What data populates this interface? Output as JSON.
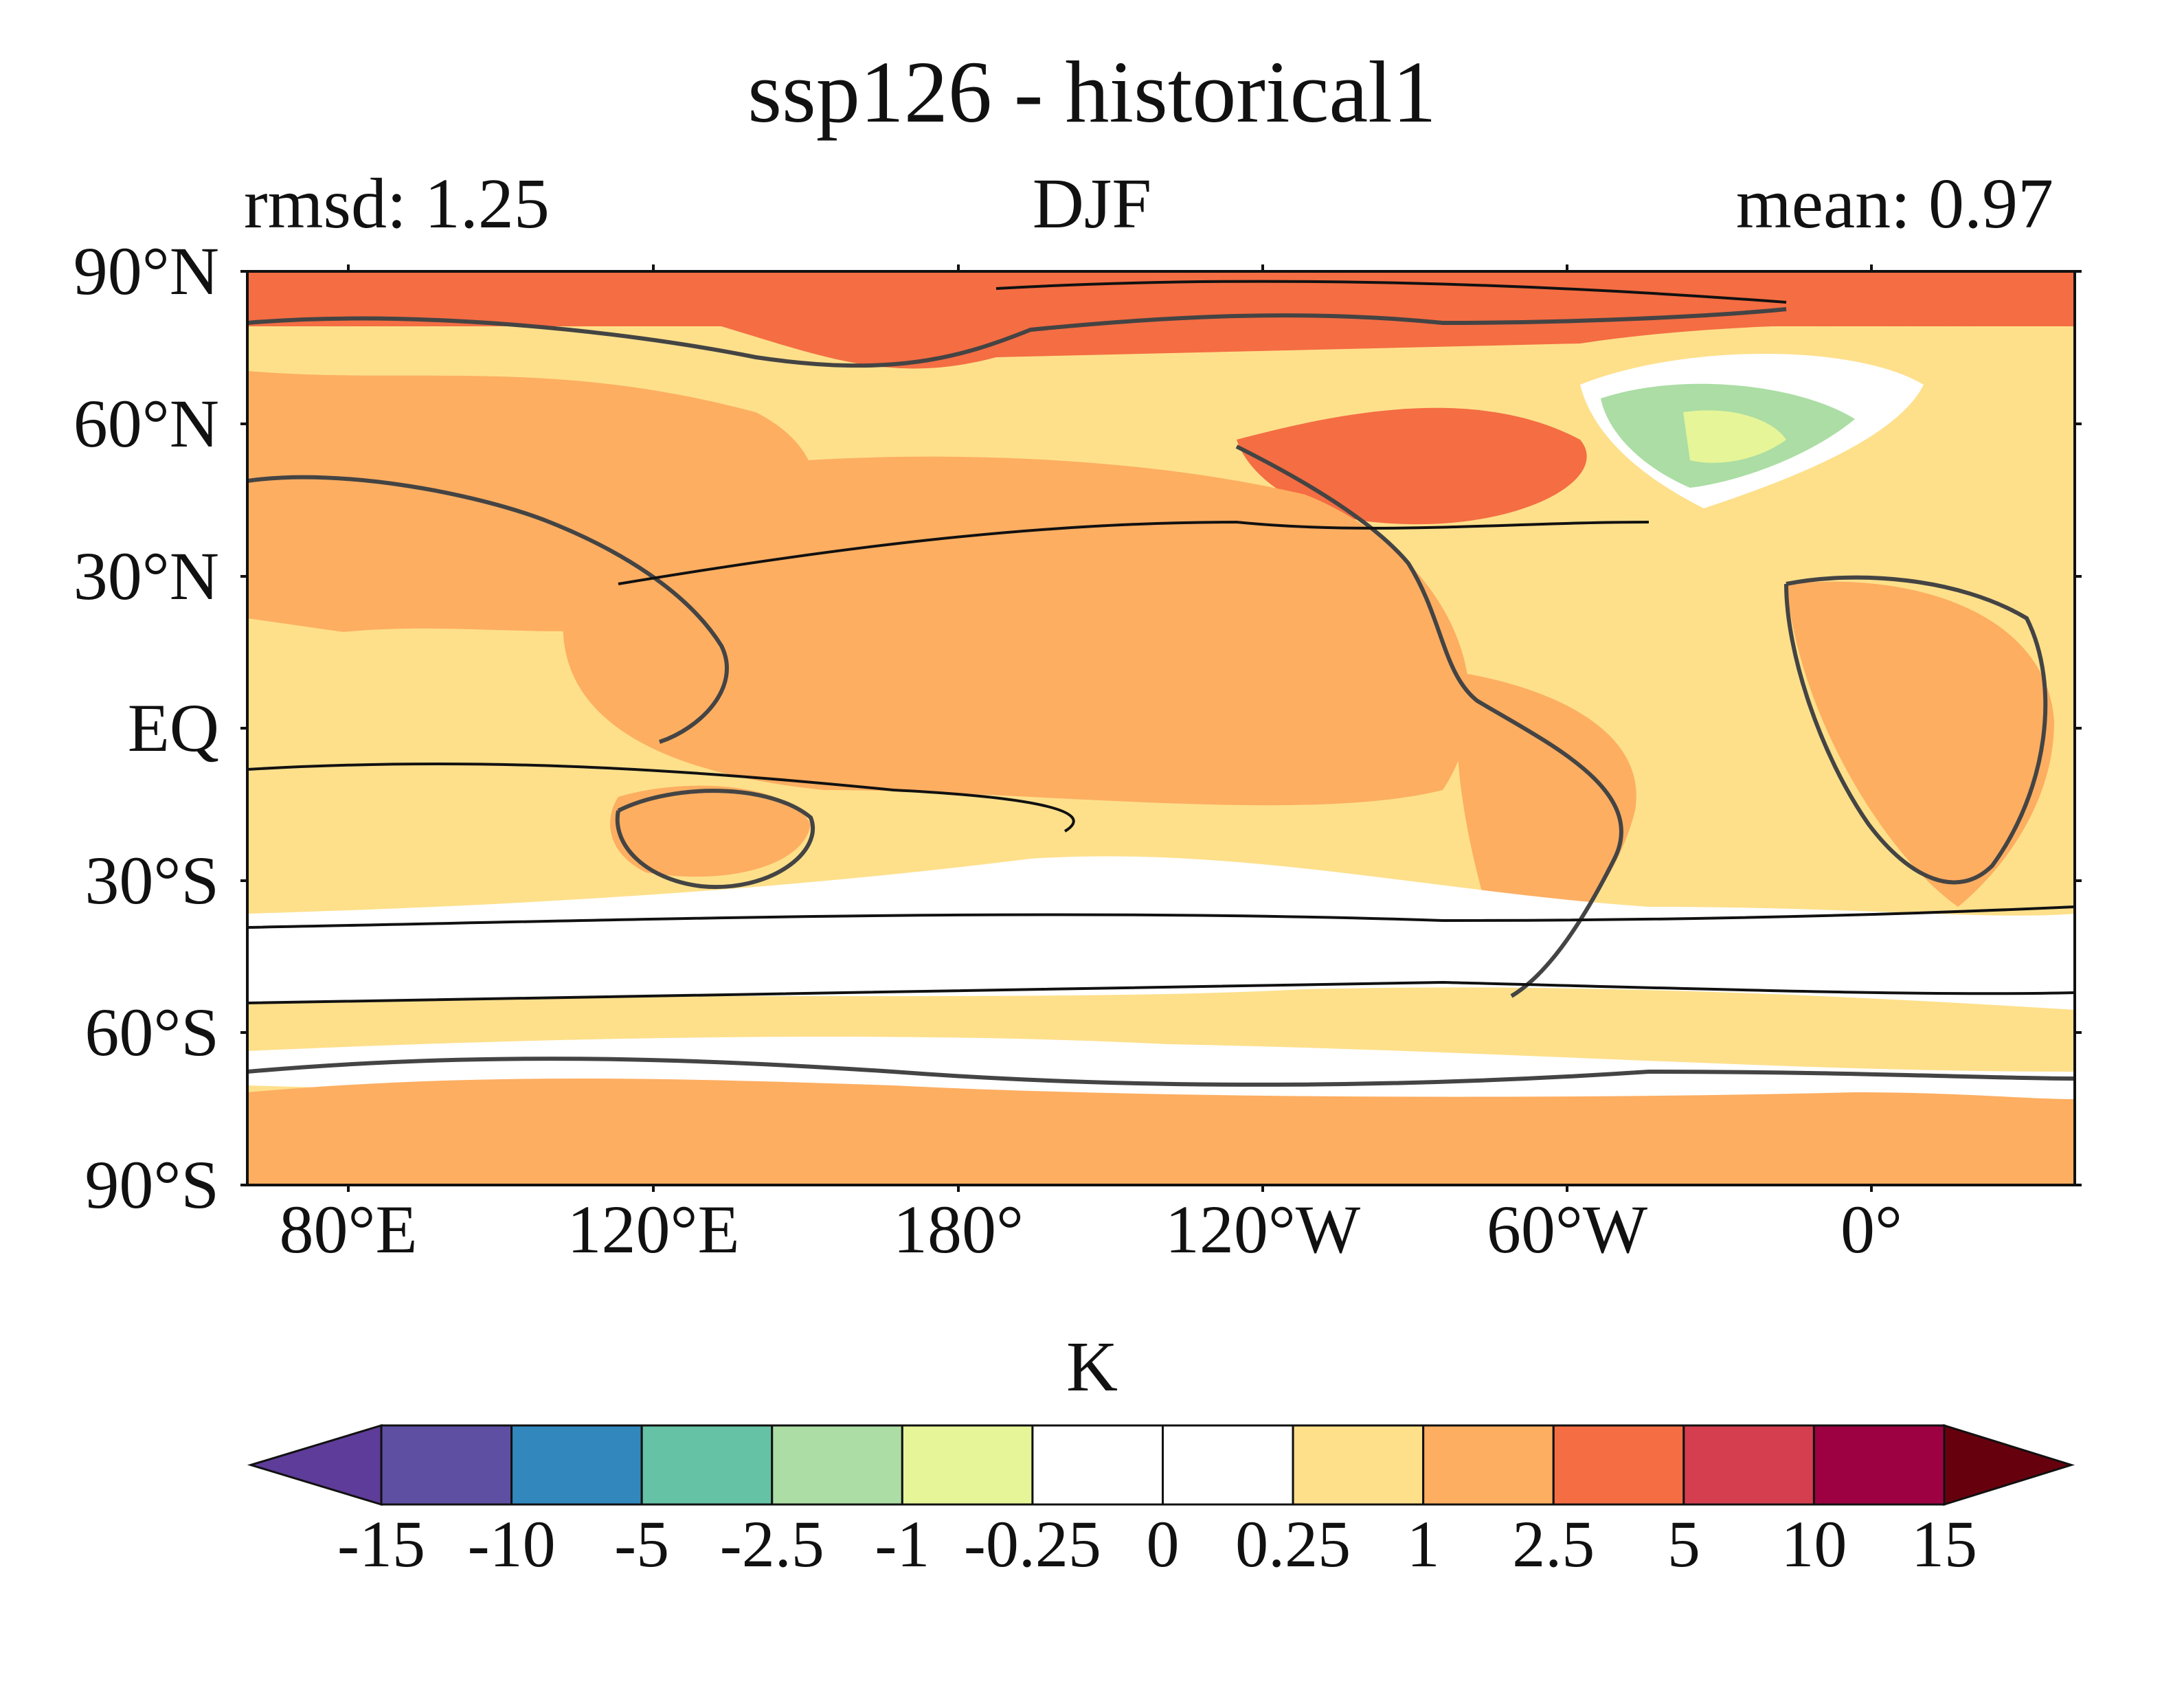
{
  "title": "ssp126 - historical1",
  "stats": {
    "left": "rmsd: 1.25",
    "center": "DJF",
    "right": "mean: 0.97"
  },
  "lat_labels": [
    "90°N",
    "60°N",
    "30°N",
    "EQ",
    "30°S",
    "60°S",
    "90°S"
  ],
  "lon_labels": [
    "80°E",
    "120°E",
    "180°",
    "120°W",
    "60°W",
    "0°"
  ],
  "colorbar": {
    "unit": "K",
    "tick_labels": [
      "-15",
      "-10",
      "-5",
      "-2.5",
      "-1",
      "-0.25",
      "0",
      "0.25",
      "1",
      "2.5",
      "5",
      "10",
      "15"
    ],
    "colors": [
      "#5e3c99",
      "#5e4fa2",
      "#3288bd",
      "#66c2a5",
      "#abdda4",
      "#e6f598",
      "#ffffff",
      "#ffffff",
      "#fee08b",
      "#fdae61",
      "#f46d43",
      "#d53e4f",
      "#9e0142",
      "#67000d"
    ]
  }
}
